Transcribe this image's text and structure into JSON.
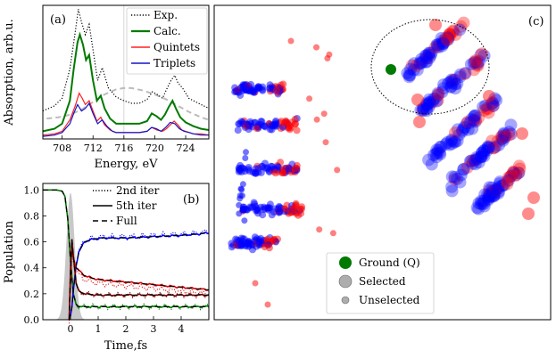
{
  "chart_data": [
    {
      "panel": "(a)",
      "type": "line",
      "xlabel": "Energy, eV",
      "ylabel": "Absorption, arb.u.",
      "xlim": [
        705.5,
        727
      ],
      "ylim": [
        0,
        1.05
      ],
      "xticks": [
        708,
        712,
        716,
        720,
        724
      ],
      "legend_position": "top-right",
      "series": [
        {
          "name": "Exp.",
          "color": "#000000",
          "style": "dotted",
          "x": [
            705.5,
            707,
            708,
            709,
            709.6,
            710.1,
            710.5,
            711,
            711.5,
            712,
            712.6,
            713.2,
            714,
            715,
            716,
            717,
            718,
            719,
            719.7,
            720.3,
            721,
            721.6,
            722.1,
            722.6,
            723,
            723.6,
            724.4,
            725,
            726,
            727
          ],
          "y": [
            0.22,
            0.26,
            0.32,
            0.55,
            0.8,
            1.02,
            0.92,
            0.82,
            0.9,
            0.7,
            0.46,
            0.56,
            0.4,
            0.33,
            0.3,
            0.28,
            0.28,
            0.31,
            0.37,
            0.35,
            0.32,
            0.4,
            0.46,
            0.5,
            0.44,
            0.4,
            0.32,
            0.3,
            0.27,
            0.24
          ]
        },
        {
          "name": "Calc.",
          "color": "#007a00",
          "style": "solid",
          "x": [
            705.5,
            707,
            708,
            709,
            709.5,
            710,
            710.3,
            710.7,
            711.1,
            711.5,
            712,
            712.5,
            713,
            713.5,
            714.2,
            715,
            716,
            717,
            718,
            719,
            719.6,
            720.2,
            720.8,
            721.3,
            721.8,
            722.3,
            722.8,
            723.3,
            724,
            725,
            726,
            727
          ],
          "y": [
            0.06,
            0.08,
            0.12,
            0.3,
            0.55,
            0.76,
            0.82,
            0.74,
            0.62,
            0.66,
            0.46,
            0.3,
            0.34,
            0.24,
            0.16,
            0.12,
            0.12,
            0.12,
            0.12,
            0.14,
            0.2,
            0.18,
            0.15,
            0.19,
            0.25,
            0.3,
            0.23,
            0.17,
            0.13,
            0.1,
            0.08,
            0.07
          ]
        },
        {
          "name": "Quintets",
          "color": "#ff2020",
          "style": "solid",
          "x": [
            705.5,
            707,
            708,
            709,
            709.7,
            710.2,
            710.6,
            711,
            711.5,
            712,
            712.5,
            713,
            713.5,
            714.2,
            715,
            716,
            717,
            718,
            719,
            719.6,
            720.3,
            721,
            721.5,
            722,
            722.5,
            723,
            723.5,
            724,
            725,
            726,
            727
          ],
          "y": [
            0.03,
            0.04,
            0.06,
            0.15,
            0.26,
            0.36,
            0.32,
            0.27,
            0.3,
            0.22,
            0.14,
            0.17,
            0.11,
            0.07,
            0.05,
            0.05,
            0.05,
            0.05,
            0.06,
            0.09,
            0.07,
            0.06,
            0.08,
            0.11,
            0.14,
            0.11,
            0.07,
            0.06,
            0.04,
            0.04,
            0.03
          ]
        },
        {
          "name": "Triplets",
          "color": "#1414c8",
          "style": "solid",
          "x": [
            705.5,
            707,
            708,
            709,
            709.5,
            710,
            710.5,
            711,
            711.5,
            712,
            712.6,
            713.2,
            713.8,
            714.5,
            715,
            716,
            717,
            718,
            719,
            719.6,
            720.2,
            720.8,
            721.4,
            722,
            722.6,
            723.2,
            723.8,
            724.5,
            725,
            726,
            727
          ],
          "y": [
            0.02,
            0.03,
            0.05,
            0.12,
            0.2,
            0.27,
            0.22,
            0.24,
            0.28,
            0.2,
            0.12,
            0.15,
            0.1,
            0.06,
            0.05,
            0.05,
            0.05,
            0.05,
            0.06,
            0.09,
            0.08,
            0.06,
            0.09,
            0.13,
            0.12,
            0.08,
            0.06,
            0.05,
            0.04,
            0.03,
            0.03
          ]
        },
        {
          "name": "envelope",
          "color": "#bbbbbb",
          "style": "dashed",
          "x": [
            706,
            707.5,
            709,
            710.5,
            712,
            713.5,
            715,
            716,
            717,
            718.5,
            720,
            721.5,
            723,
            724.5,
            726,
            727
          ],
          "y": [
            0.16,
            0.17,
            0.19,
            0.23,
            0.29,
            0.35,
            0.39,
            0.4,
            0.4,
            0.38,
            0.35,
            0.31,
            0.26,
            0.21,
            0.17,
            0.15
          ]
        }
      ]
    },
    {
      "panel": "(b)",
      "type": "line",
      "xlabel": "Time,fs",
      "ylabel": "Population",
      "xlim": [
        -1,
        5
      ],
      "ylim": [
        0,
        1.05
      ],
      "xticks": [
        0,
        1,
        2,
        3,
        4
      ],
      "yticks": [
        "0.0",
        "0.2",
        "0.4",
        "0.6",
        "0.8",
        "1.0"
      ],
      "legend_position": "top-right",
      "legend": [
        {
          "name": "2nd iter",
          "style": "dotted"
        },
        {
          "name": "5th iter",
          "style": "solid"
        },
        {
          "name": "Full",
          "style": "dashed"
        }
      ],
      "pulse": {
        "center": 0.0,
        "width": 0.15,
        "height": 0.98,
        "color": "#c8c8c8"
      },
      "series": [
        {
          "name": "ground",
          "color": "#007a00",
          "x": [
            -1,
            -0.5,
            -0.3,
            -0.2,
            -0.1,
            0,
            0.1,
            0.2,
            0.3,
            0.5,
            1,
            2,
            3,
            4,
            5
          ],
          "y": [
            1.0,
            1.0,
            0.99,
            0.95,
            0.78,
            0.45,
            0.2,
            0.12,
            0.1,
            0.1,
            0.1,
            0.1,
            0.1,
            0.1,
            0.1
          ]
        },
        {
          "name": "excited-1",
          "color": "#0000ff",
          "x": [
            -0.05,
            0,
            0.05,
            0.1,
            0.2,
            0.3,
            0.5,
            0.8,
            1.2,
            2,
            3,
            4,
            4.6,
            5
          ],
          "y": [
            0.0,
            0.03,
            0.1,
            0.22,
            0.42,
            0.52,
            0.6,
            0.62,
            0.63,
            0.63,
            0.64,
            0.65,
            0.66,
            0.67
          ]
        },
        {
          "name": "excited-2",
          "color": "#e00000",
          "x": [
            -0.05,
            0,
            0.05,
            0.1,
            0.2,
            0.3,
            0.5,
            0.8,
            1,
            1.5,
            2,
            2.5,
            3,
            3.5,
            4,
            4.5,
            5
          ],
          "y": [
            0.0,
            0.4,
            0.58,
            0.48,
            0.4,
            0.38,
            0.34,
            0.32,
            0.31,
            0.3,
            0.29,
            0.28,
            0.27,
            0.26,
            0.25,
            0.24,
            0.23
          ]
        },
        {
          "name": "excited-3",
          "color": "#7a0000",
          "x": [
            -0.05,
            0,
            0.05,
            0.1,
            0.2,
            0.3,
            0.5,
            1,
            2,
            3,
            4,
            5
          ],
          "y": [
            0.0,
            0.3,
            0.62,
            0.5,
            0.28,
            0.22,
            0.2,
            0.19,
            0.19,
            0.19,
            0.19,
            0.19
          ]
        }
      ]
    },
    {
      "panel": "(c)",
      "type": "scatter",
      "description_legend_only": true,
      "legend_position": "bottom-center",
      "legend": [
        {
          "name": "Ground (Q)",
          "color": "#007a00"
        },
        {
          "name": "Selected",
          "color": "#999999"
        },
        {
          "name": "Unselected",
          "color": "#999999"
        }
      ],
      "colors": {
        "triplet": "#0000ff",
        "quintet": "#ff0000",
        "ground": "#007a00"
      }
    }
  ]
}
